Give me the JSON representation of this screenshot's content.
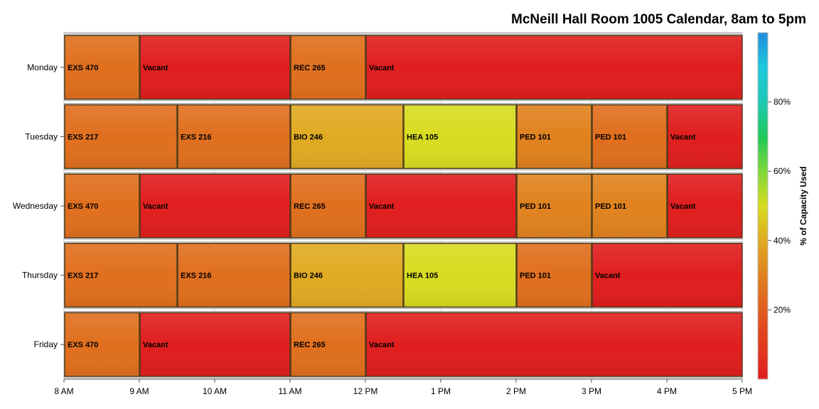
{
  "chart_data": {
    "type": "timeline",
    "title": "McNeill Hall Room 1005 Calendar, 8am to 5pm",
    "x_ticks": [
      {
        "hour": 8,
        "label": "8 AM"
      },
      {
        "hour": 9,
        "label": "9 AM"
      },
      {
        "hour": 10,
        "label": "10 AM"
      },
      {
        "hour": 11,
        "label": "11 AM"
      },
      {
        "hour": 12,
        "label": "12 PM"
      },
      {
        "hour": 13,
        "label": "1 PM"
      },
      {
        "hour": 14,
        "label": "2 PM"
      },
      {
        "hour": 15,
        "label": "3 PM"
      },
      {
        "hour": 16,
        "label": "4 PM"
      },
      {
        "hour": 17,
        "label": "5 PM"
      }
    ],
    "xlim": [
      8,
      17
    ],
    "days": [
      {
        "day": "Monday",
        "events": [
          {
            "label": "EXS 470",
            "start": 8,
            "end": 9,
            "capacity": 25
          },
          {
            "label": "Vacant",
            "start": 9,
            "end": 11,
            "capacity": 0
          },
          {
            "label": "REC 265",
            "start": 11,
            "end": 12,
            "capacity": 25
          },
          {
            "label": "Vacant",
            "start": 12,
            "end": 17,
            "capacity": 0
          }
        ]
      },
      {
        "day": "Tuesday",
        "events": [
          {
            "label": "EXS 217",
            "start": 8,
            "end": 9.5,
            "capacity": 25
          },
          {
            "label": "EXS 216",
            "start": 9.5,
            "end": 11,
            "capacity": 25
          },
          {
            "label": "BIO 246",
            "start": 11,
            "end": 12.5,
            "capacity": 40
          },
          {
            "label": "HEA 105",
            "start": 12.5,
            "end": 14,
            "capacity": 50
          },
          {
            "label": "PED 101",
            "start": 14,
            "end": 15,
            "capacity": 30
          },
          {
            "label": "PED 101",
            "start": 15,
            "end": 16,
            "capacity": 25
          },
          {
            "label": "Vacant",
            "start": 16,
            "end": 17,
            "capacity": 0
          }
        ]
      },
      {
        "day": "Wednesday",
        "events": [
          {
            "label": "EXS 470",
            "start": 8,
            "end": 9,
            "capacity": 25
          },
          {
            "label": "Vacant",
            "start": 9,
            "end": 11,
            "capacity": 0
          },
          {
            "label": "REC 265",
            "start": 11,
            "end": 12,
            "capacity": 25
          },
          {
            "label": "Vacant",
            "start": 12,
            "end": 14,
            "capacity": 0
          },
          {
            "label": "PED 101",
            "start": 14,
            "end": 15,
            "capacity": 30
          },
          {
            "label": "PED 101",
            "start": 15,
            "end": 16,
            "capacity": 30
          },
          {
            "label": "Vacant",
            "start": 16,
            "end": 17,
            "capacity": 0
          }
        ]
      },
      {
        "day": "Thursday",
        "events": [
          {
            "label": "EXS 217",
            "start": 8,
            "end": 9.5,
            "capacity": 25
          },
          {
            "label": "EXS 216",
            "start": 9.5,
            "end": 11,
            "capacity": 25
          },
          {
            "label": "BIO 246",
            "start": 11,
            "end": 12.5,
            "capacity": 40
          },
          {
            "label": "HEA 105",
            "start": 12.5,
            "end": 14,
            "capacity": 50
          },
          {
            "label": "PED 101",
            "start": 14,
            "end": 15,
            "capacity": 25
          },
          {
            "label": "Vacant",
            "start": 15,
            "end": 17,
            "capacity": 0
          }
        ]
      },
      {
        "day": "Friday",
        "events": [
          {
            "label": "EXS 470",
            "start": 8,
            "end": 9,
            "capacity": 25
          },
          {
            "label": "Vacant",
            "start": 9,
            "end": 11,
            "capacity": 0
          },
          {
            "label": "REC 265",
            "start": 11,
            "end": 12,
            "capacity": 25
          },
          {
            "label": "Vacant",
            "start": 12,
            "end": 17,
            "capacity": 0
          }
        ]
      }
    ],
    "colorbar": {
      "title": "% of Capacity Used",
      "range": [
        0,
        100
      ],
      "ticks": [
        {
          "value": 20,
          "label": "20%"
        },
        {
          "value": 40,
          "label": "40%"
        },
        {
          "value": 60,
          "label": "60%"
        },
        {
          "value": 80,
          "label": "80%"
        }
      ],
      "gradient_stops": [
        {
          "value": 0,
          "color": "#e01e1e"
        },
        {
          "value": 15,
          "color": "#e04a1e"
        },
        {
          "value": 30,
          "color": "#e0821e"
        },
        {
          "value": 40,
          "color": "#e0aa22"
        },
        {
          "value": 50,
          "color": "#d8dc20"
        },
        {
          "value": 60,
          "color": "#7ed83a"
        },
        {
          "value": 70,
          "color": "#1ec85a"
        },
        {
          "value": 80,
          "color": "#1ec8b4"
        },
        {
          "value": 90,
          "color": "#1ec8dc"
        },
        {
          "value": 100,
          "color": "#1e8cdc"
        }
      ]
    },
    "legend_placement": "right",
    "grid": true
  }
}
